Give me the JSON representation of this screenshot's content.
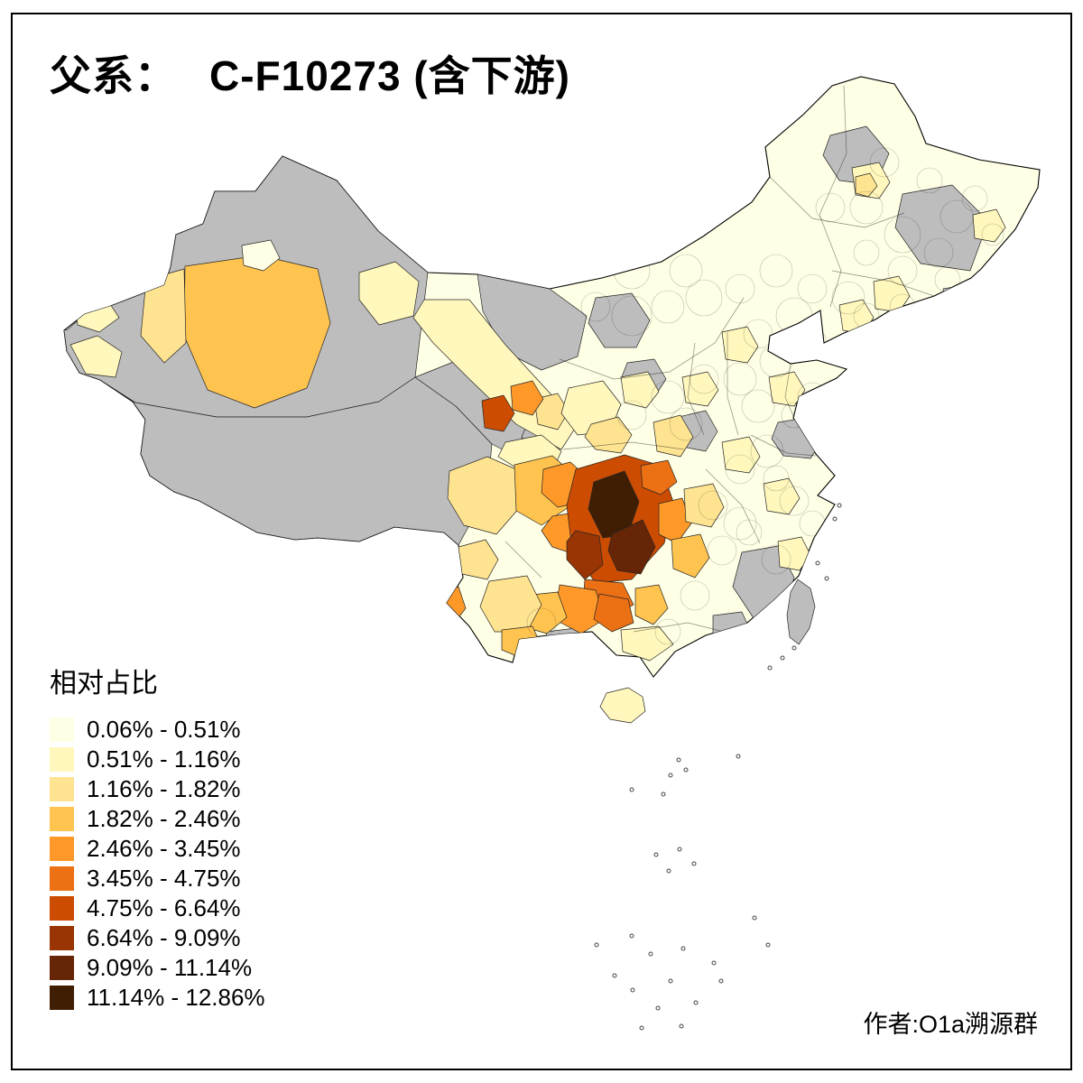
{
  "title": {
    "label": "父系：",
    "value": "C-F10273 (含下游)"
  },
  "legend": {
    "title": "相对占比",
    "no_data_color": "#BDBDBD",
    "items": [
      {
        "label": "0.06% - 0.51%",
        "color": "#FFFFE5"
      },
      {
        "label": "0.51% - 1.16%",
        "color": "#FFF7BC"
      },
      {
        "label": "1.16% - 1.82%",
        "color": "#FEE391"
      },
      {
        "label": "1.82% - 2.46%",
        "color": "#FEC44F"
      },
      {
        "label": "2.46% - 3.45%",
        "color": "#FE9929"
      },
      {
        "label": "3.45% - 4.75%",
        "color": "#EC7014"
      },
      {
        "label": "4.75% - 6.64%",
        "color": "#CC4C02"
      },
      {
        "label": "6.64% - 9.09%",
        "color": "#993404"
      },
      {
        "label": "9.09% - 11.14%",
        "color": "#662506"
      },
      {
        "label": "11.14% - 12.86%",
        "color": "#401E04"
      }
    ]
  },
  "credit": "作者:O1a溯源群"
}
